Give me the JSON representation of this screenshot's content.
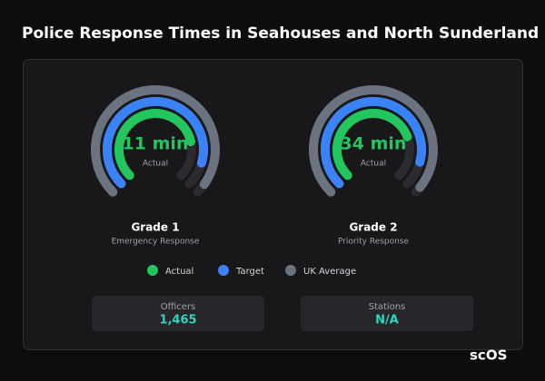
{
  "title": "Police Response Times in Seahouses and North Sunderland",
  "series": [
    {
      "name": "Actual",
      "color": "#22c55e"
    },
    {
      "name": "Target",
      "color": "#3b82f6"
    },
    {
      "name": "UK Average",
      "color": "#6b7280"
    }
  ],
  "gauges": [
    {
      "name": "Grade 1",
      "subtitle": "Emergency Response",
      "range": [
        0,
        14
      ],
      "values": [
        11,
        12.5,
        13.5
      ],
      "value_label": "11 min"
    },
    {
      "name": "Grade 2",
      "subtitle": "Priority Response",
      "range": [
        0,
        45
      ],
      "values": [
        34,
        40,
        44
      ],
      "value_label": "34 min"
    }
  ],
  "stats": [
    {
      "label": "Officers",
      "value": "1,465"
    },
    {
      "label": "Stations",
      "value": "N/A"
    }
  ],
  "brand": "scOS"
}
